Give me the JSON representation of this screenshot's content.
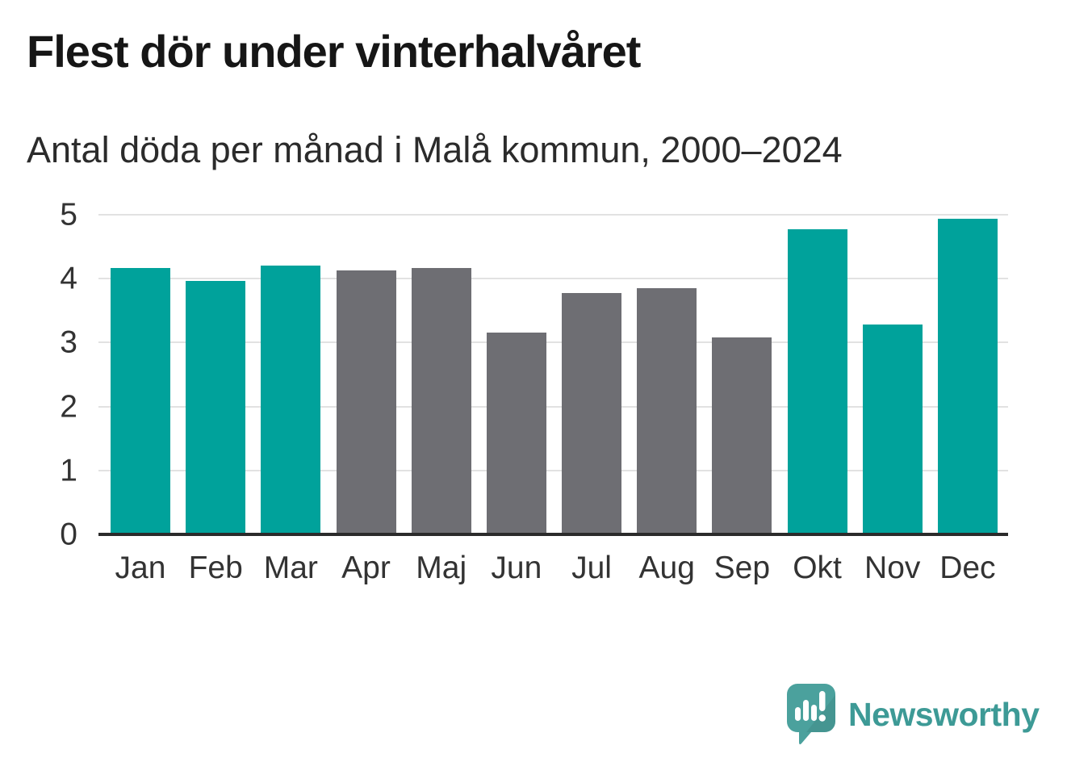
{
  "header": {
    "title": "Flest dör under vinterhalvåret",
    "subtitle": "Antal döda per månad i Malå kommun, 2000–2024"
  },
  "chart_data": {
    "type": "bar",
    "title": "Flest dör under vinterhalvåret",
    "subtitle": "Antal döda per månad i Malå kommun, 2000–2024",
    "categories": [
      "Jan",
      "Feb",
      "Mar",
      "Apr",
      "Maj",
      "Jun",
      "Jul",
      "Aug",
      "Sep",
      "Okt",
      "Nov",
      "Dec"
    ],
    "values": [
      4.17,
      3.97,
      4.21,
      4.13,
      4.17,
      3.16,
      3.77,
      3.85,
      3.08,
      4.77,
      3.28,
      4.94
    ],
    "bar_color_keys": [
      "teal",
      "teal",
      "teal",
      "gray",
      "gray",
      "gray",
      "gray",
      "gray",
      "gray",
      "teal",
      "teal",
      "teal"
    ],
    "colors": {
      "teal": "#00a29b",
      "gray": "#6e6e73"
    },
    "xlabel": "",
    "ylabel": "",
    "ylim": [
      0,
      5
    ],
    "yticks": [
      0,
      1,
      2,
      3,
      4,
      5
    ],
    "grid": true,
    "legend": "none"
  },
  "footer": {
    "brand": "Newsworthy",
    "brand_color": "#3d9a96",
    "logo_icon": "speech-bubble-bar-chart-icon",
    "logo_color": "#4ba19d"
  }
}
